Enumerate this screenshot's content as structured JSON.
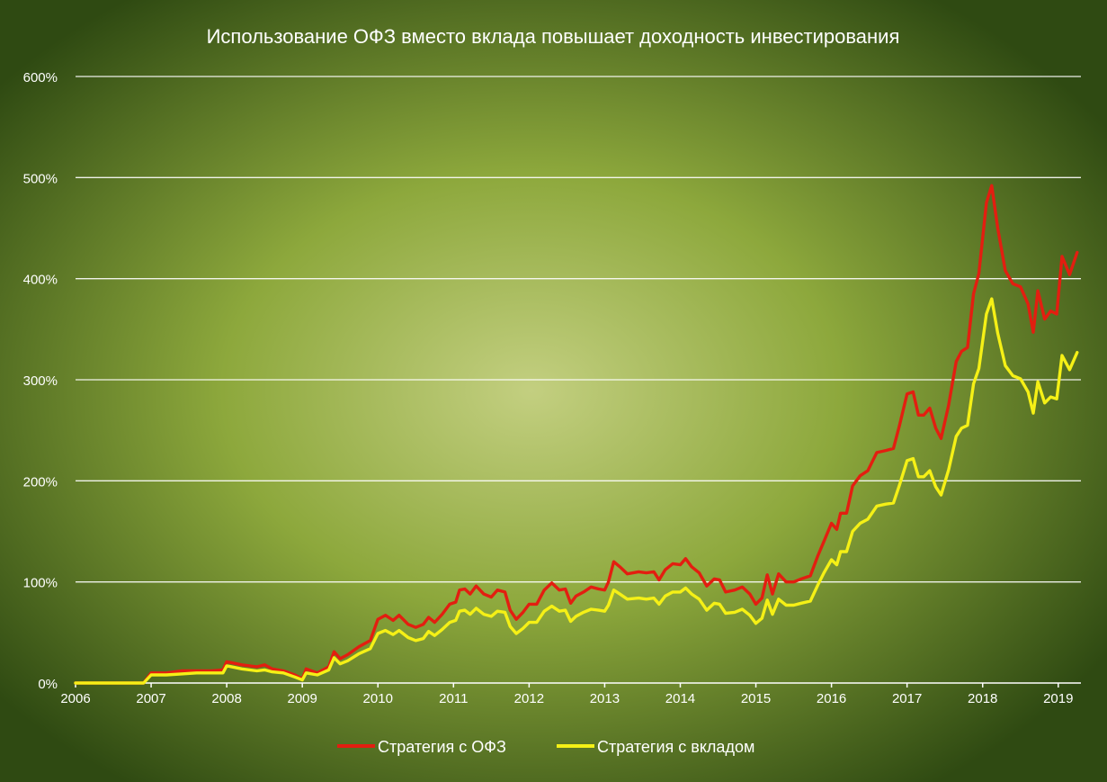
{
  "colors": {
    "background_center": "#c3cf80",
    "background_mid": "#8da83c",
    "background_edge": "#2f4a12",
    "grid": "#ffffff",
    "text": "#ffffff"
  },
  "chart_data": {
    "type": "line",
    "title": "Использование ОФЗ вместо вклада повышает доходность инвестирования",
    "xlabel": "",
    "ylabel": "",
    "xlim": [
      2006,
      2019.3
    ],
    "ylim": [
      0,
      600
    ],
    "grid": true,
    "legend_position": "bottom-center",
    "x_ticks": [
      {
        "value": 2006,
        "label": "2006"
      },
      {
        "value": 2007,
        "label": "2007"
      },
      {
        "value": 2008,
        "label": "2008"
      },
      {
        "value": 2009,
        "label": "2009"
      },
      {
        "value": 2010,
        "label": "2010"
      },
      {
        "value": 2011,
        "label": "2011"
      },
      {
        "value": 2012,
        "label": "2012"
      },
      {
        "value": 2013,
        "label": "2013"
      },
      {
        "value": 2014,
        "label": "2014"
      },
      {
        "value": 2015,
        "label": "2015"
      },
      {
        "value": 2016,
        "label": "2016"
      },
      {
        "value": 2017,
        "label": "2017"
      },
      {
        "value": 2018,
        "label": "2018"
      },
      {
        "value": 2019,
        "label": "2019"
      }
    ],
    "y_ticks": [
      {
        "value": 0,
        "label": "0%"
      },
      {
        "value": 100,
        "label": "100%"
      },
      {
        "value": 200,
        "label": "200%"
      },
      {
        "value": 300,
        "label": "300%"
      },
      {
        "value": 400,
        "label": "400%"
      },
      {
        "value": 500,
        "label": "500%"
      },
      {
        "value": 600,
        "label": "600%"
      }
    ],
    "series": [
      {
        "name": "Стратегия  с ОФЗ",
        "color": "#e31e10",
        "points": [
          [
            2006.0,
            0
          ],
          [
            2006.9,
            0
          ],
          [
            2007.0,
            10
          ],
          [
            2007.2,
            10
          ],
          [
            2007.4,
            12
          ],
          [
            2007.6,
            12
          ],
          [
            2007.8,
            12
          ],
          [
            2007.95,
            13
          ],
          [
            2008.0,
            21
          ],
          [
            2008.2,
            18
          ],
          [
            2008.4,
            16
          ],
          [
            2008.5,
            18
          ],
          [
            2008.6,
            14
          ],
          [
            2008.75,
            12
          ],
          [
            2008.9,
            8
          ],
          [
            2009.0,
            4
          ],
          [
            2009.05,
            14
          ],
          [
            2009.2,
            10
          ],
          [
            2009.35,
            16
          ],
          [
            2009.42,
            31
          ],
          [
            2009.5,
            24
          ],
          [
            2009.6,
            28
          ],
          [
            2009.75,
            36
          ],
          [
            2009.9,
            42
          ],
          [
            2010.0,
            63
          ],
          [
            2010.1,
            67
          ],
          [
            2010.2,
            62
          ],
          [
            2010.28,
            67
          ],
          [
            2010.4,
            58
          ],
          [
            2010.5,
            55
          ],
          [
            2010.6,
            58
          ],
          [
            2010.67,
            65
          ],
          [
            2010.75,
            60
          ],
          [
            2010.85,
            68
          ],
          [
            2010.95,
            78
          ],
          [
            2011.03,
            80
          ],
          [
            2011.08,
            92
          ],
          [
            2011.15,
            93
          ],
          [
            2011.22,
            88
          ],
          [
            2011.3,
            96
          ],
          [
            2011.4,
            88
          ],
          [
            2011.5,
            85
          ],
          [
            2011.58,
            92
          ],
          [
            2011.68,
            90
          ],
          [
            2011.75,
            72
          ],
          [
            2011.83,
            63
          ],
          [
            2011.92,
            70
          ],
          [
            2012.0,
            78
          ],
          [
            2012.1,
            78
          ],
          [
            2012.2,
            92
          ],
          [
            2012.3,
            99
          ],
          [
            2012.4,
            92
          ],
          [
            2012.48,
            93
          ],
          [
            2012.55,
            79
          ],
          [
            2012.62,
            86
          ],
          [
            2012.72,
            90
          ],
          [
            2012.82,
            95
          ],
          [
            2012.92,
            93
          ],
          [
            2013.0,
            92
          ],
          [
            2013.05,
            100
          ],
          [
            2013.12,
            120
          ],
          [
            2013.2,
            115
          ],
          [
            2013.3,
            108
          ],
          [
            2013.45,
            110
          ],
          [
            2013.55,
            109
          ],
          [
            2013.65,
            110
          ],
          [
            2013.72,
            102
          ],
          [
            2013.8,
            112
          ],
          [
            2013.9,
            118
          ],
          [
            2014.0,
            117
          ],
          [
            2014.07,
            123
          ],
          [
            2014.15,
            115
          ],
          [
            2014.25,
            109
          ],
          [
            2014.35,
            96
          ],
          [
            2014.45,
            103
          ],
          [
            2014.52,
            102
          ],
          [
            2014.6,
            90
          ],
          [
            2014.72,
            92
          ],
          [
            2014.82,
            95
          ],
          [
            2014.92,
            88
          ],
          [
            2015.0,
            78
          ],
          [
            2015.08,
            84
          ],
          [
            2015.15,
            107
          ],
          [
            2015.22,
            88
          ],
          [
            2015.3,
            108
          ],
          [
            2015.4,
            100
          ],
          [
            2015.5,
            100
          ],
          [
            2015.6,
            103
          ],
          [
            2015.72,
            106
          ],
          [
            2015.82,
            126
          ],
          [
            2015.9,
            140
          ],
          [
            2016.0,
            158
          ],
          [
            2016.07,
            152
          ],
          [
            2016.12,
            168
          ],
          [
            2016.2,
            168
          ],
          [
            2016.28,
            195
          ],
          [
            2016.38,
            205
          ],
          [
            2016.48,
            210
          ],
          [
            2016.6,
            228
          ],
          [
            2016.72,
            230
          ],
          [
            2016.82,
            232
          ],
          [
            2016.9,
            255
          ],
          [
            2017.0,
            286
          ],
          [
            2017.08,
            288
          ],
          [
            2017.15,
            265
          ],
          [
            2017.22,
            265
          ],
          [
            2017.3,
            272
          ],
          [
            2017.38,
            252
          ],
          [
            2017.45,
            242
          ],
          [
            2017.55,
            275
          ],
          [
            2017.65,
            318
          ],
          [
            2017.72,
            328
          ],
          [
            2017.8,
            332
          ],
          [
            2017.88,
            385
          ],
          [
            2017.95,
            405
          ],
          [
            2018.05,
            475
          ],
          [
            2018.12,
            492
          ],
          [
            2018.2,
            450
          ],
          [
            2018.3,
            408
          ],
          [
            2018.4,
            395
          ],
          [
            2018.5,
            392
          ],
          [
            2018.6,
            375
          ],
          [
            2018.67,
            347
          ],
          [
            2018.73,
            388
          ],
          [
            2018.82,
            360
          ],
          [
            2018.9,
            368
          ],
          [
            2018.98,
            365
          ],
          [
            2019.05,
            422
          ],
          [
            2019.15,
            404
          ],
          [
            2019.25,
            426
          ]
        ]
      },
      {
        "name": "Стратегия  с вкладом",
        "color": "#f5f016",
        "points": [
          [
            2006.0,
            0
          ],
          [
            2006.9,
            0
          ],
          [
            2007.0,
            8
          ],
          [
            2007.2,
            8
          ],
          [
            2007.4,
            9
          ],
          [
            2007.6,
            10
          ],
          [
            2007.8,
            10
          ],
          [
            2007.95,
            10
          ],
          [
            2008.0,
            17
          ],
          [
            2008.2,
            14
          ],
          [
            2008.4,
            12
          ],
          [
            2008.5,
            13
          ],
          [
            2008.6,
            11
          ],
          [
            2008.75,
            10
          ],
          [
            2008.9,
            6
          ],
          [
            2009.0,
            3
          ],
          [
            2009.05,
            10
          ],
          [
            2009.2,
            8
          ],
          [
            2009.35,
            13
          ],
          [
            2009.42,
            25
          ],
          [
            2009.5,
            19
          ],
          [
            2009.6,
            22
          ],
          [
            2009.75,
            29
          ],
          [
            2009.9,
            34
          ],
          [
            2010.0,
            49
          ],
          [
            2010.1,
            52
          ],
          [
            2010.2,
            48
          ],
          [
            2010.28,
            52
          ],
          [
            2010.4,
            45
          ],
          [
            2010.5,
            42
          ],
          [
            2010.6,
            44
          ],
          [
            2010.67,
            51
          ],
          [
            2010.75,
            47
          ],
          [
            2010.85,
            53
          ],
          [
            2010.95,
            60
          ],
          [
            2011.03,
            62
          ],
          [
            2011.08,
            71
          ],
          [
            2011.15,
            72
          ],
          [
            2011.22,
            68
          ],
          [
            2011.3,
            74
          ],
          [
            2011.4,
            68
          ],
          [
            2011.5,
            66
          ],
          [
            2011.58,
            71
          ],
          [
            2011.68,
            70
          ],
          [
            2011.75,
            56
          ],
          [
            2011.83,
            49
          ],
          [
            2011.92,
            54
          ],
          [
            2012.0,
            60
          ],
          [
            2012.1,
            60
          ],
          [
            2012.2,
            71
          ],
          [
            2012.3,
            76
          ],
          [
            2012.4,
            71
          ],
          [
            2012.48,
            72
          ],
          [
            2012.55,
            61
          ],
          [
            2012.62,
            66
          ],
          [
            2012.72,
            70
          ],
          [
            2012.82,
            73
          ],
          [
            2012.92,
            72
          ],
          [
            2013.0,
            71
          ],
          [
            2013.05,
            77
          ],
          [
            2013.12,
            92
          ],
          [
            2013.2,
            88
          ],
          [
            2013.3,
            83
          ],
          [
            2013.45,
            84
          ],
          [
            2013.55,
            83
          ],
          [
            2013.65,
            84
          ],
          [
            2013.72,
            78
          ],
          [
            2013.8,
            86
          ],
          [
            2013.9,
            90
          ],
          [
            2014.0,
            90
          ],
          [
            2014.07,
            94
          ],
          [
            2014.15,
            88
          ],
          [
            2014.25,
            83
          ],
          [
            2014.35,
            72
          ],
          [
            2014.45,
            79
          ],
          [
            2014.52,
            78
          ],
          [
            2014.6,
            69
          ],
          [
            2014.72,
            70
          ],
          [
            2014.82,
            73
          ],
          [
            2014.92,
            67
          ],
          [
            2015.0,
            59
          ],
          [
            2015.08,
            64
          ],
          [
            2015.15,
            82
          ],
          [
            2015.22,
            68
          ],
          [
            2015.3,
            83
          ],
          [
            2015.4,
            77
          ],
          [
            2015.5,
            77
          ],
          [
            2015.6,
            79
          ],
          [
            2015.72,
            81
          ],
          [
            2015.82,
            97
          ],
          [
            2015.9,
            109
          ],
          [
            2016.0,
            122
          ],
          [
            2016.07,
            117
          ],
          [
            2016.12,
            130
          ],
          [
            2016.2,
            130
          ],
          [
            2016.28,
            150
          ],
          [
            2016.38,
            158
          ],
          [
            2016.48,
            162
          ],
          [
            2016.6,
            175
          ],
          [
            2016.72,
            177
          ],
          [
            2016.82,
            178
          ],
          [
            2016.9,
            196
          ],
          [
            2017.0,
            220
          ],
          [
            2017.08,
            222
          ],
          [
            2017.15,
            204
          ],
          [
            2017.22,
            204
          ],
          [
            2017.3,
            210
          ],
          [
            2017.38,
            194
          ],
          [
            2017.45,
            186
          ],
          [
            2017.55,
            211
          ],
          [
            2017.65,
            244
          ],
          [
            2017.72,
            252
          ],
          [
            2017.8,
            255
          ],
          [
            2017.88,
            296
          ],
          [
            2017.95,
            311
          ],
          [
            2018.05,
            365
          ],
          [
            2018.12,
            380
          ],
          [
            2018.2,
            346
          ],
          [
            2018.3,
            314
          ],
          [
            2018.4,
            304
          ],
          [
            2018.5,
            301
          ],
          [
            2018.6,
            288
          ],
          [
            2018.67,
            267
          ],
          [
            2018.73,
            298
          ],
          [
            2018.82,
            277
          ],
          [
            2018.9,
            283
          ],
          [
            2018.98,
            281
          ],
          [
            2019.05,
            324
          ],
          [
            2019.15,
            310
          ],
          [
            2019.25,
            327
          ]
        ]
      }
    ]
  }
}
